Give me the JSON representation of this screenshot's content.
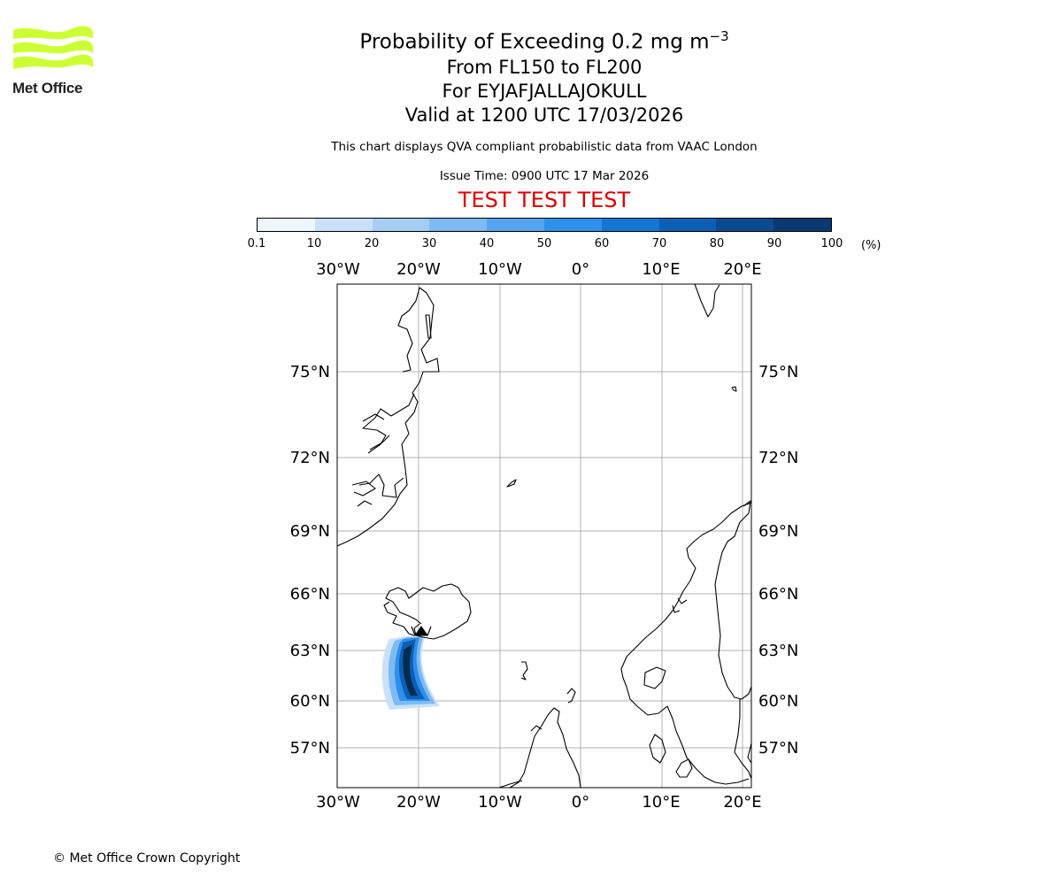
{
  "logo": {
    "text": "Met Office",
    "color": "#ccff33"
  },
  "title": {
    "main": "Probability of Exceeding 0.2 mg m",
    "superscript": "−3",
    "levels": "From FL150 to FL200",
    "volcano": "For EYJAFJALLAJOKULL",
    "valid": "Valid at 1200 UTC 17/03/2026"
  },
  "subtitle": "This chart displays QVA compliant probabilistic data from VAAC London",
  "issue_time": "Issue Time: 0900 UTC 17 Mar 2026",
  "test_banner": {
    "text": "TEST TEST TEST",
    "color": "#dd0000"
  },
  "colorbar": {
    "ticks": [
      "0.1",
      "10",
      "20",
      "30",
      "40",
      "50",
      "60",
      "70",
      "80",
      "90",
      "100"
    ],
    "unit": "(%)",
    "colors": [
      "#eef6ff",
      "#c9e1f8",
      "#a6cdf4",
      "#7ebaf3",
      "#55a4ef",
      "#2e90ec",
      "#1276d6",
      "#0b5fb5",
      "#0a4a90",
      "#083a71",
      "#062b52"
    ]
  },
  "map": {
    "longitude_labels": [
      "30°W",
      "20°W",
      "10°W",
      "0°",
      "10°E",
      "20°E"
    ],
    "latitude_labels": [
      "75°N",
      "72°N",
      "69°N",
      "66°N",
      "63°N",
      "60°N",
      "57°N"
    ],
    "volcano_marker": "triangle"
  },
  "copyright": "© Met Office Crown Copyright"
}
